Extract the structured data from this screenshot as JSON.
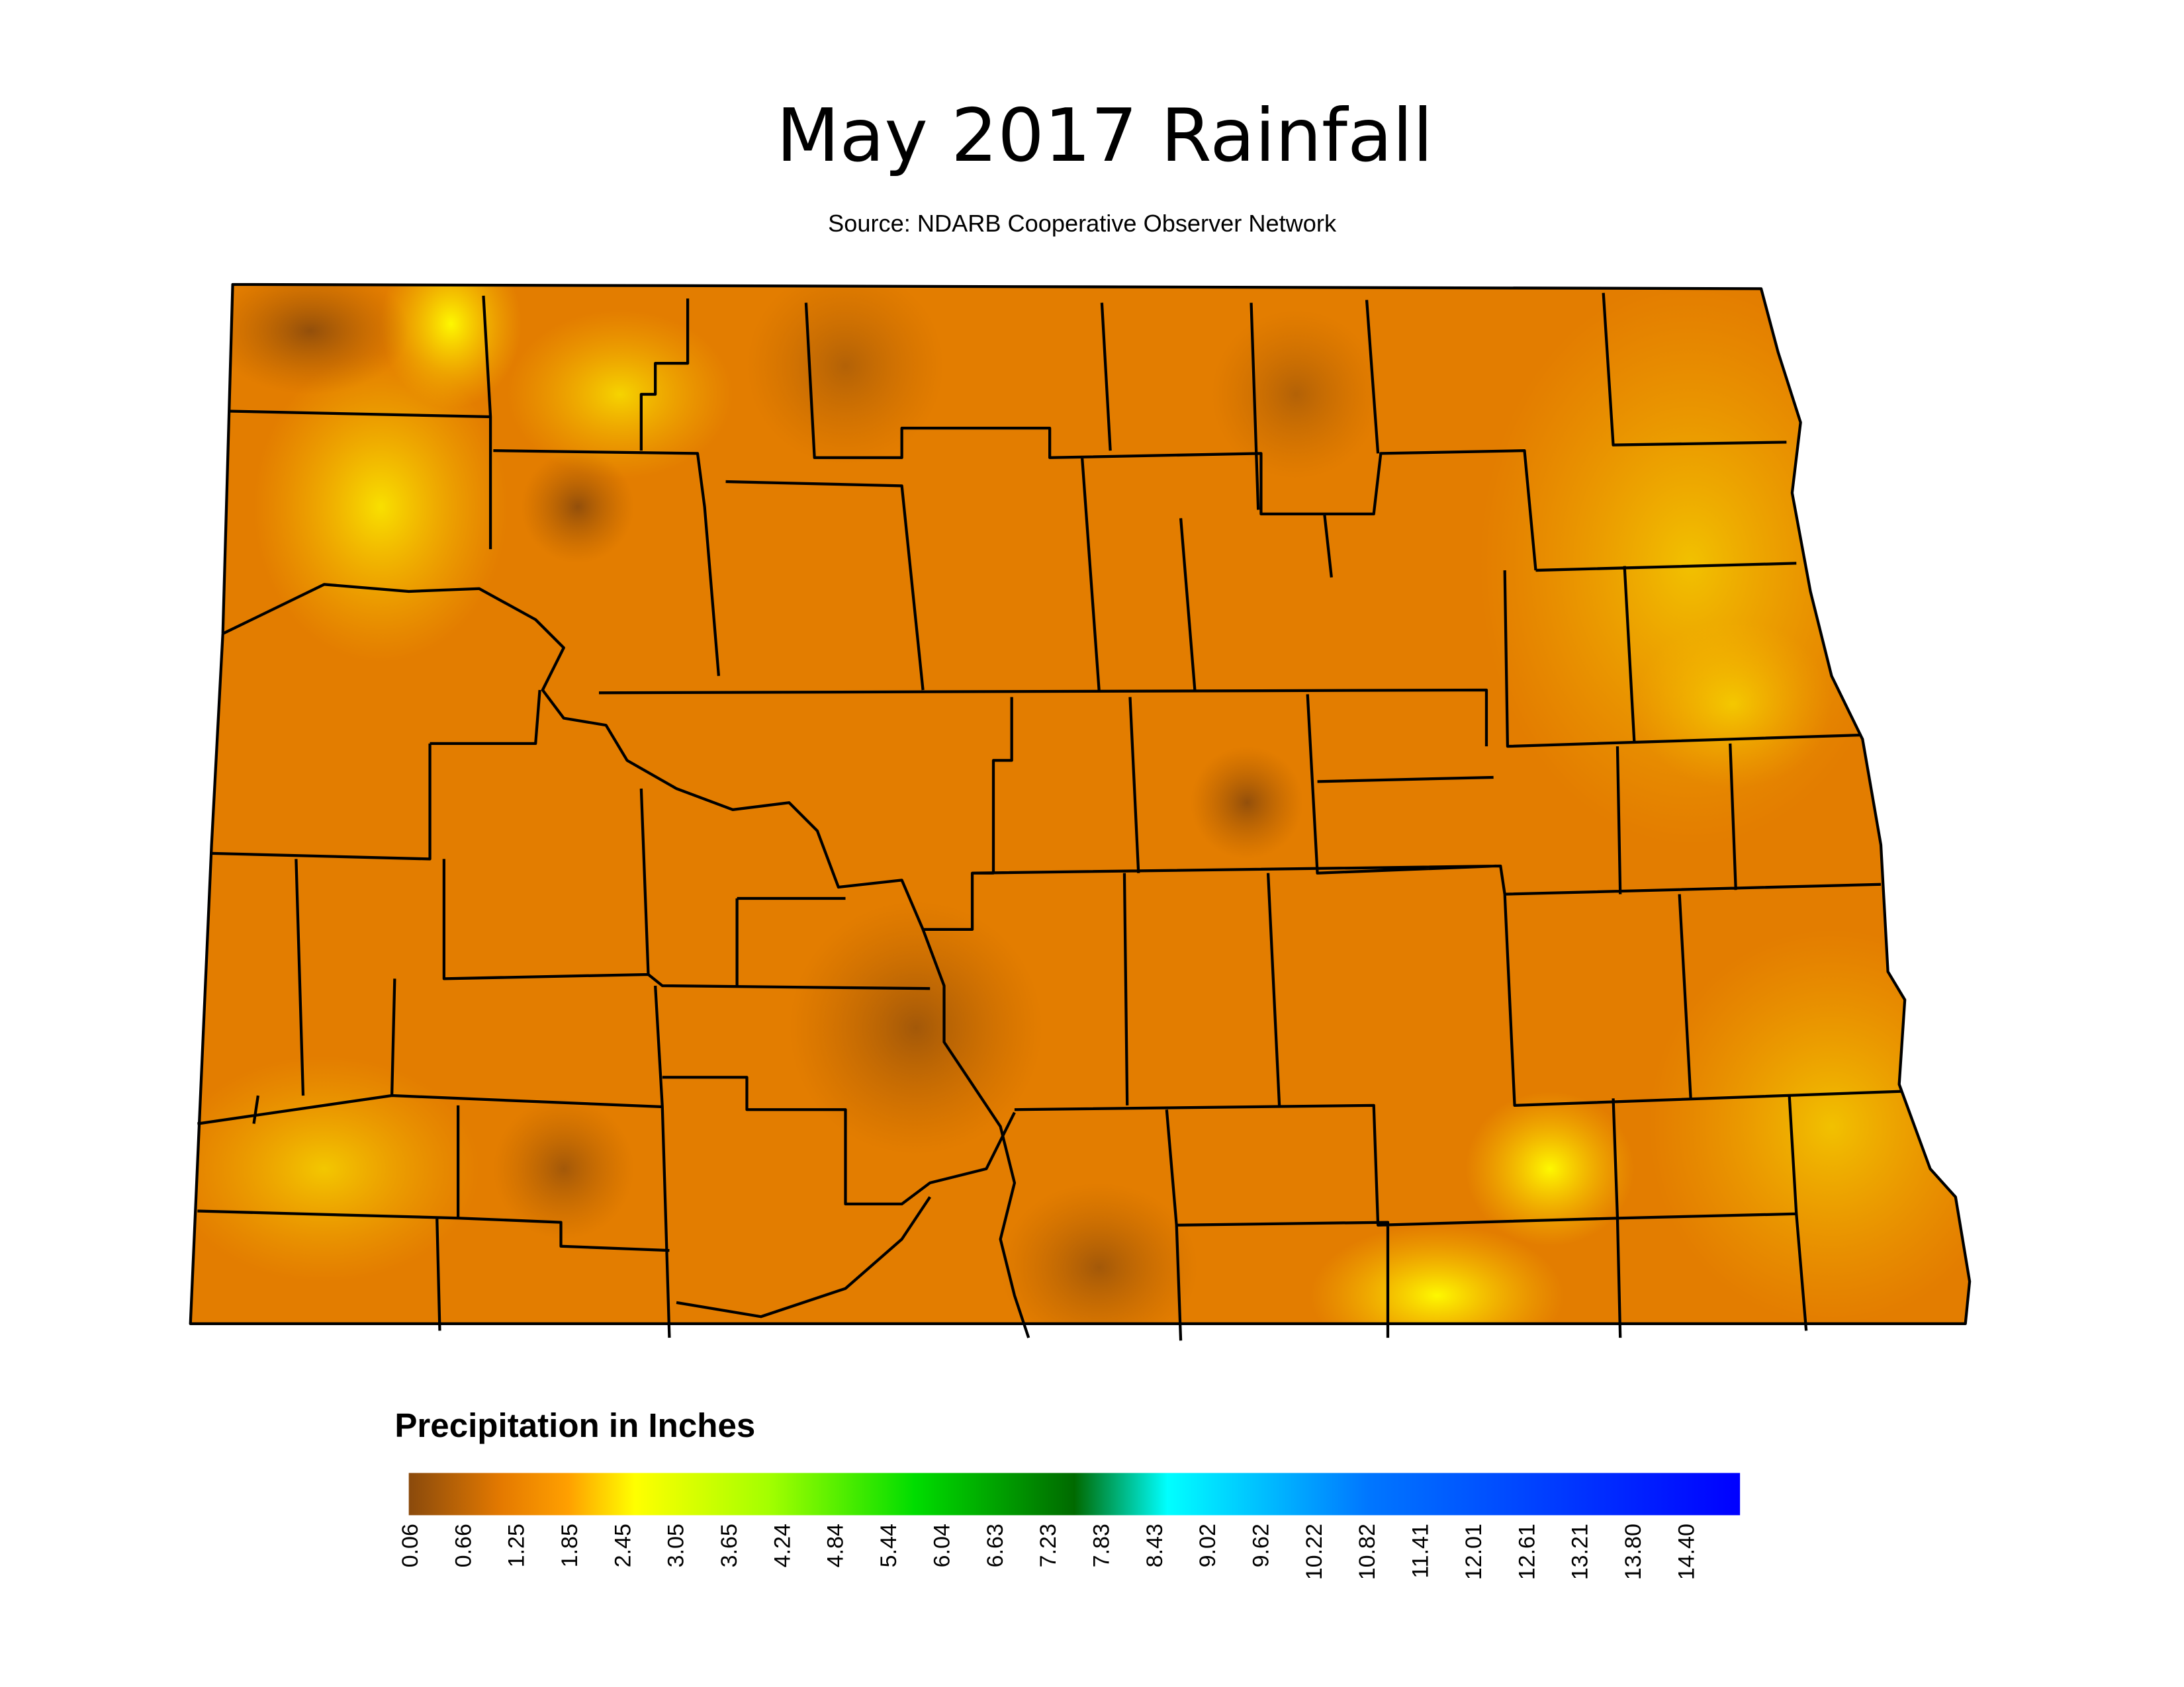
{
  "header": {
    "title": "May 2017 Rainfall",
    "source": "Source: NDARB Cooperative Observer Network"
  },
  "legend": {
    "title": "Precipitation in Inches",
    "labels": [
      "0.06",
      "0.66",
      "1.25",
      "1.85",
      "2.45",
      "3.05",
      "3.65",
      "4.24",
      "4.84",
      "5.44",
      "6.04",
      "6.63",
      "7.23",
      "7.83",
      "8.43",
      "9.02",
      "9.62",
      "10.22",
      "10.82",
      "11.41",
      "12.01",
      "12.61",
      "13.21",
      "13.80",
      "14.40"
    ]
  }
}
